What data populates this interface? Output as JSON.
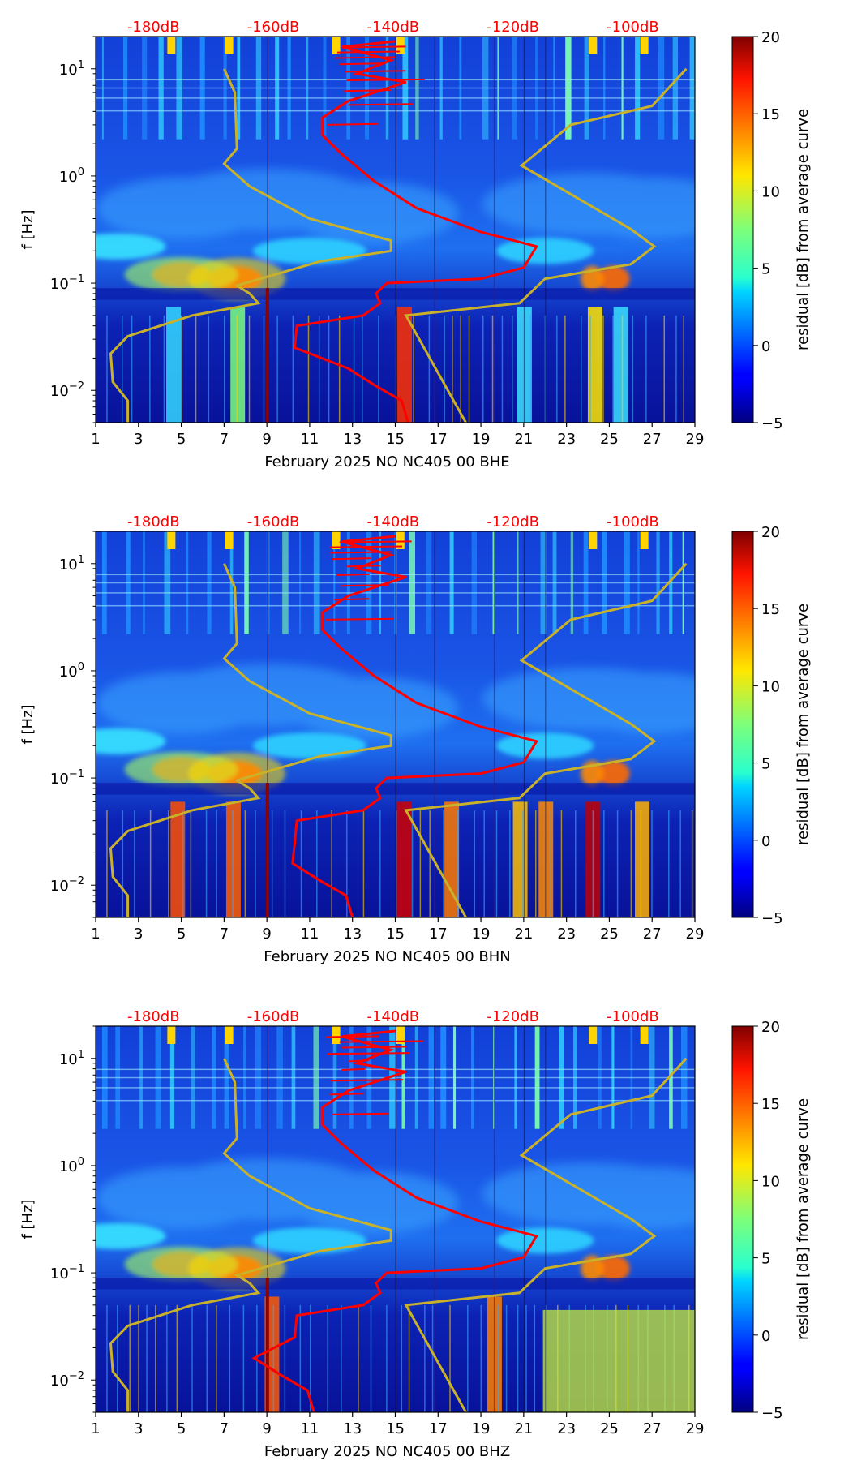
{
  "chart_data": [
    {
      "type": "heatmap",
      "title": "",
      "xlabel": "February 2025 NO NC405 00 BHE",
      "ylabel": "f [Hz]",
      "xlim": [
        1,
        29
      ],
      "ylim": [
        0.005,
        20
      ],
      "yscale": "log",
      "x_ticks": [
        "1",
        "3",
        "5",
        "7",
        "9",
        "11",
        "13",
        "15",
        "17",
        "19",
        "21",
        "23",
        "25",
        "27",
        "29"
      ],
      "y_ticks": [
        {
          "mant": "10",
          "exp": "−2"
        },
        {
          "mant": "10",
          "exp": "−1"
        },
        {
          "mant": "10",
          "exp": "0"
        },
        {
          "mant": "10",
          "exp": "1"
        }
      ],
      "db_axis_labels": [
        "-180dB",
        "-160dB",
        "-140dB",
        "-120dB",
        "-100dB"
      ],
      "colorbar": {
        "label": "residual [dB] from average curve",
        "range": [
          -5,
          20
        ],
        "ticks": [
          "−5",
          "0",
          "5",
          "10",
          "15",
          "20"
        ]
      },
      "reference_curves_color": "#c9b22a",
      "average_curve_color": "#ff0000"
    },
    {
      "type": "heatmap",
      "title": "",
      "xlabel": "February 2025 NO NC405 00 BHN",
      "ylabel": "f [Hz]",
      "xlim": [
        1,
        29
      ],
      "ylim": [
        0.005,
        20
      ],
      "yscale": "log",
      "x_ticks": [
        "1",
        "3",
        "5",
        "7",
        "9",
        "11",
        "13",
        "15",
        "17",
        "19",
        "21",
        "23",
        "25",
        "27",
        "29"
      ],
      "y_ticks": [
        {
          "mant": "10",
          "exp": "−2"
        },
        {
          "mant": "10",
          "exp": "−1"
        },
        {
          "mant": "10",
          "exp": "0"
        },
        {
          "mant": "10",
          "exp": "1"
        }
      ],
      "db_axis_labels": [
        "-180dB",
        "-160dB",
        "-140dB",
        "-120dB",
        "-100dB"
      ],
      "colorbar": {
        "label": "residual [dB] from average curve",
        "range": [
          -5,
          20
        ],
        "ticks": [
          "−5",
          "0",
          "5",
          "10",
          "15",
          "20"
        ]
      },
      "reference_curves_color": "#c9b22a",
      "average_curve_color": "#ff0000"
    },
    {
      "type": "heatmap",
      "title": "",
      "xlabel": "February 2025 NO NC405 00 BHZ",
      "ylabel": "f [Hz]",
      "xlim": [
        1,
        29
      ],
      "ylim": [
        0.005,
        20
      ],
      "yscale": "log",
      "x_ticks": [
        "1",
        "3",
        "5",
        "7",
        "9",
        "11",
        "13",
        "15",
        "17",
        "19",
        "21",
        "23",
        "25",
        "27",
        "29"
      ],
      "y_ticks": [
        {
          "mant": "10",
          "exp": "−2"
        },
        {
          "mant": "10",
          "exp": "−1"
        },
        {
          "mant": "10",
          "exp": "0"
        },
        {
          "mant": "10",
          "exp": "1"
        }
      ],
      "db_axis_labels": [
        "-180dB",
        "-160dB",
        "-140dB",
        "-120dB",
        "-100dB"
      ],
      "colorbar": {
        "label": "residual [dB] from average curve",
        "range": [
          -5,
          20
        ],
        "ticks": [
          "−5",
          "0",
          "5",
          "10",
          "15",
          "20"
        ]
      },
      "reference_curves_color": "#c9b22a",
      "average_curve_color": "#ff0000"
    }
  ]
}
